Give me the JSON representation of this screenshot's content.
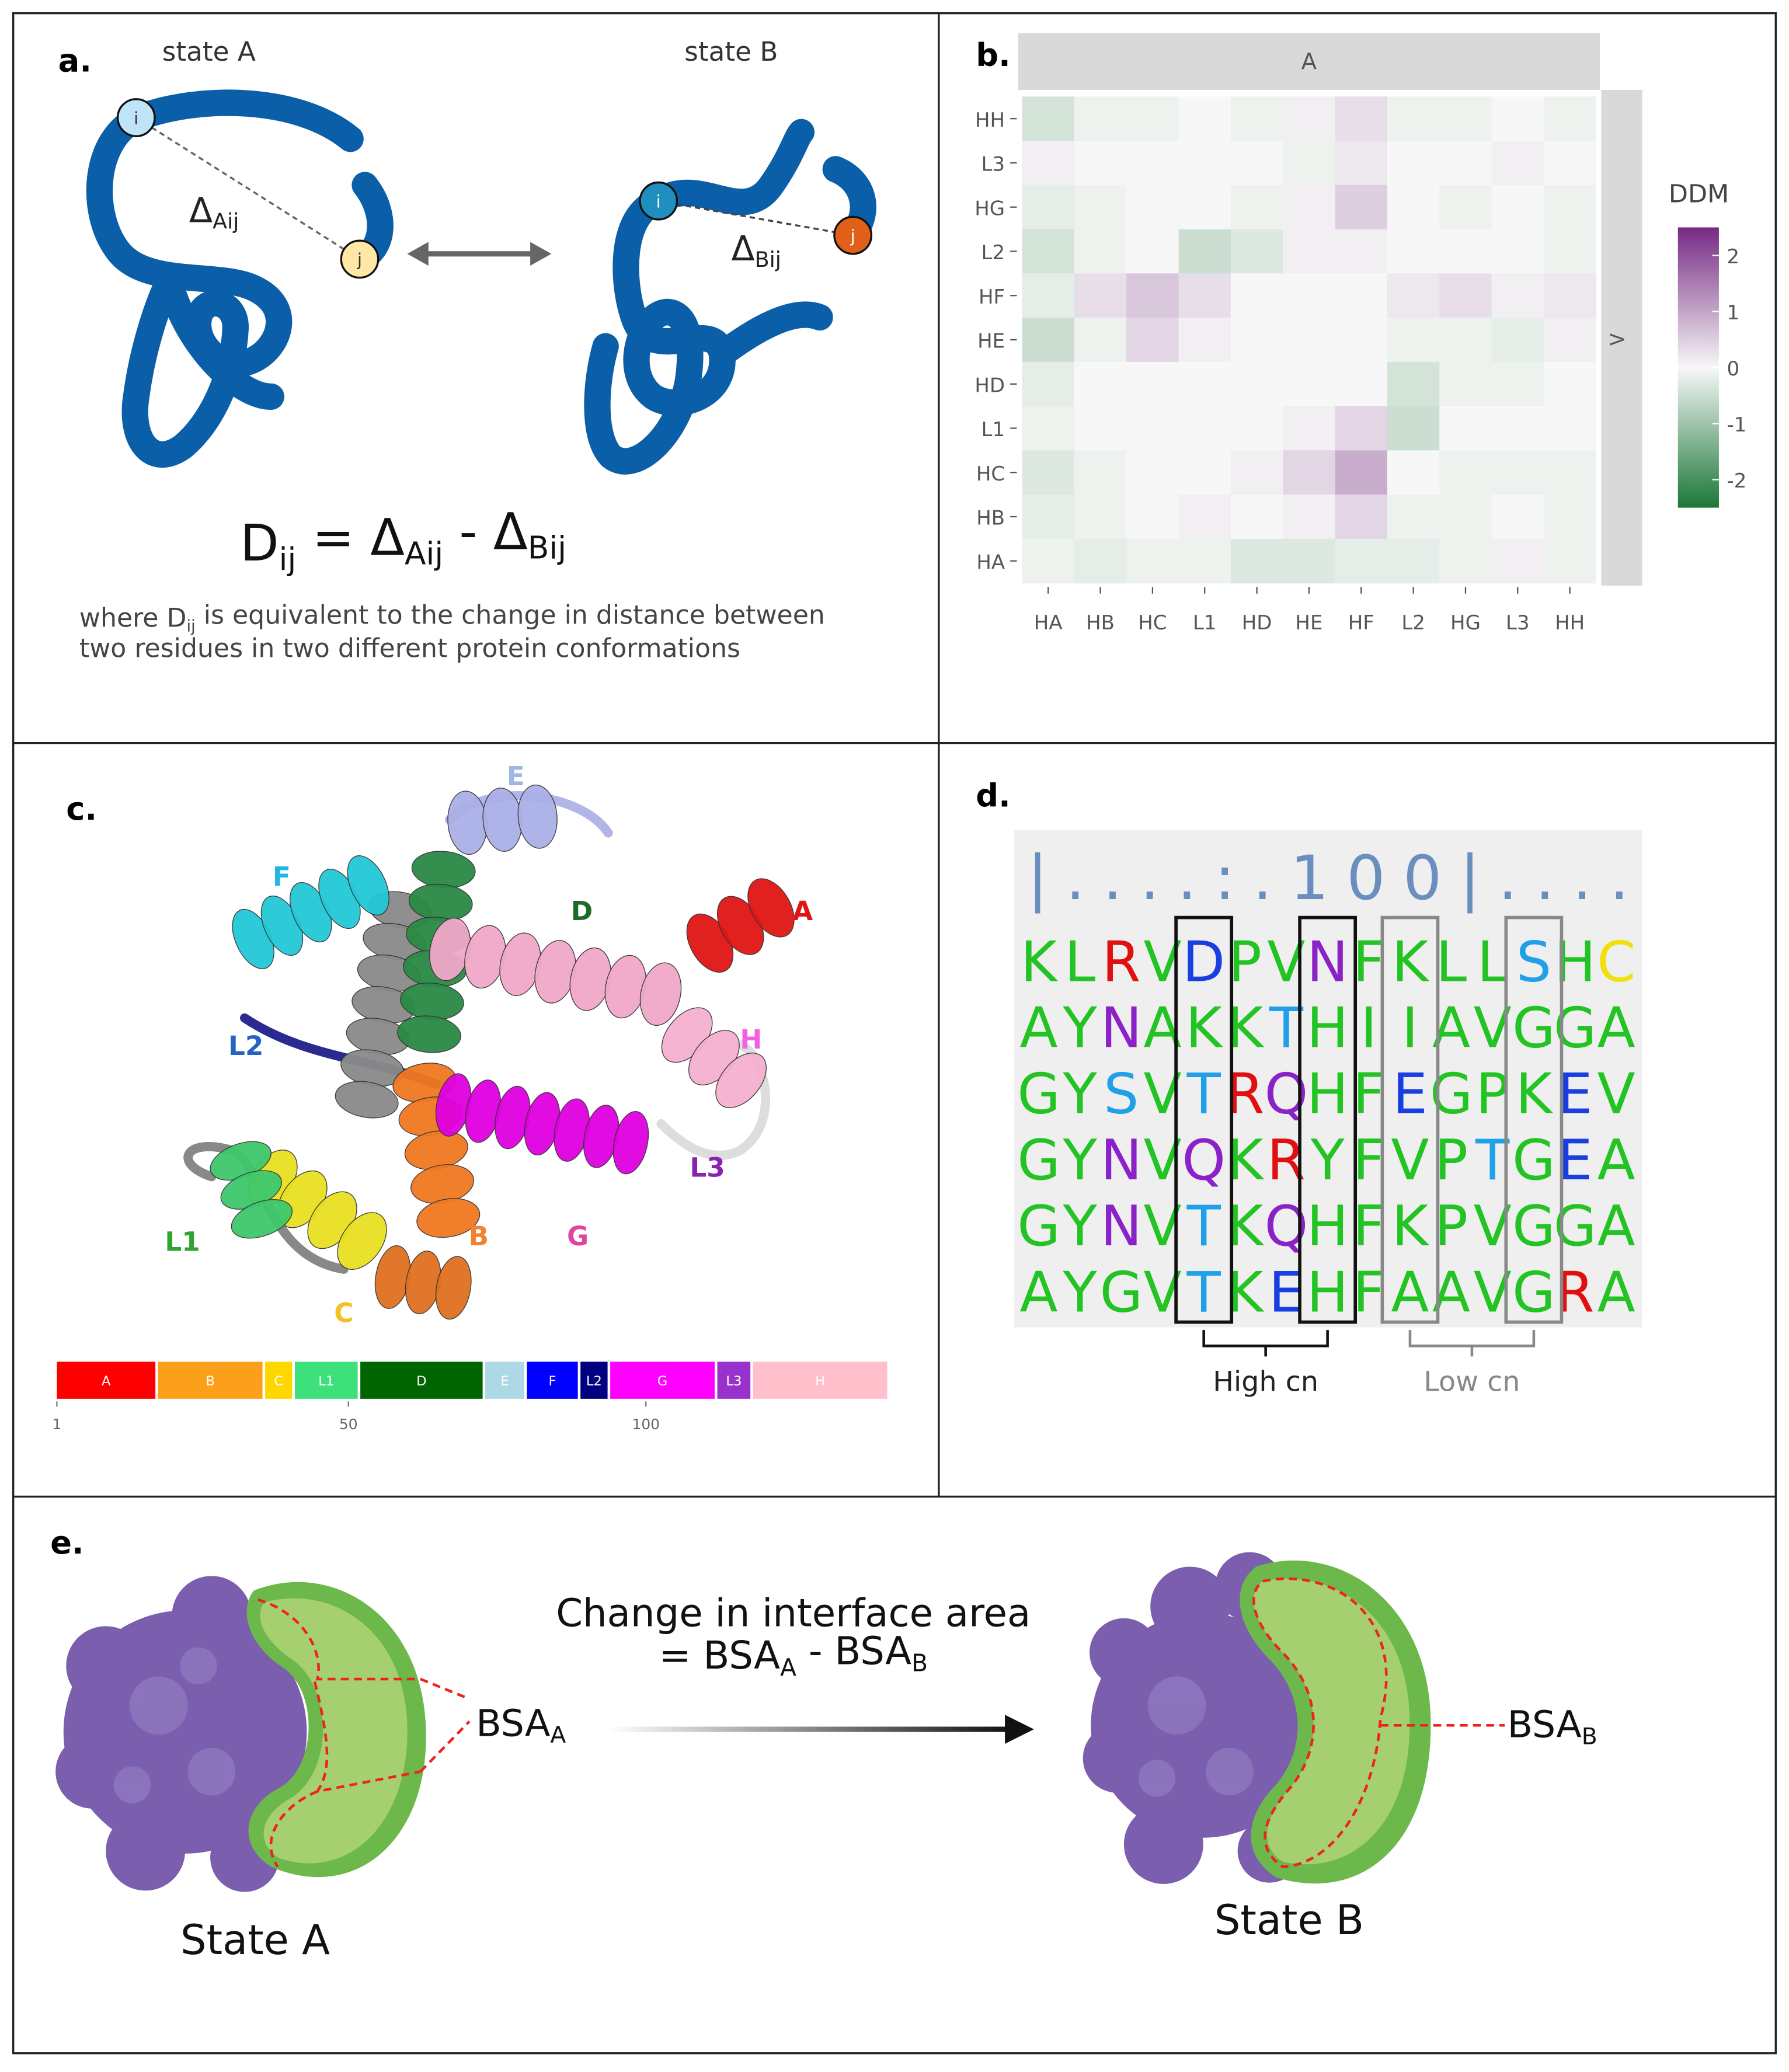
{
  "panel_a": {
    "label": "a.",
    "state_a": "state A",
    "state_b": "state B",
    "i_a": "i",
    "j_a": "j",
    "i_b": "i",
    "j_b": "j",
    "delta_a": [
      {
        "text": "Δ"
      },
      {
        "sub": "Aij"
      }
    ],
    "delta_b": [
      {
        "text": "Δ"
      },
      {
        "sub": "Bij"
      }
    ],
    "formula": [
      {
        "text": "D"
      },
      {
        "sub": "ij"
      },
      {
        "text": " = Δ"
      },
      {
        "sub": "Aij"
      },
      {
        "text": " - Δ"
      },
      {
        "sub": "Bij"
      }
    ],
    "caption": [
      [
        {
          "text": "where D"
        },
        {
          "sub": "ij"
        },
        {
          "text": " is equivalent to the change in distance between"
        }
      ],
      [
        {
          "text": "two residues in two different protein conformations"
        }
      ]
    ]
  },
  "panel_b": {
    "label": "b.",
    "chart_data": {
      "type": "heatmap",
      "facet_top": "A",
      "facet_right": ">",
      "x": [
        "HA",
        "HB",
        "HC",
        "L1",
        "HD",
        "HE",
        "HF",
        "L2",
        "HG",
        "L3",
        "HH"
      ],
      "y": [
        "HH",
        "L3",
        "HG",
        "L2",
        "HF",
        "HE",
        "HD",
        "L1",
        "HC",
        "HB",
        "HA"
      ],
      "values": [
        [
          -0.4,
          -0.1,
          -0.1,
          0,
          -0.1,
          0.1,
          0.3,
          -0.1,
          -0.1,
          0,
          -0.1
        ],
        [
          0.1,
          0,
          0,
          0,
          0,
          -0.1,
          0.2,
          0,
          0,
          0.1,
          0
        ],
        [
          -0.2,
          -0.1,
          0,
          0,
          -0.1,
          0.1,
          0.5,
          0,
          -0.1,
          0,
          -0.1
        ],
        [
          -0.4,
          -0.1,
          0,
          -0.5,
          -0.3,
          0.1,
          0.1,
          0,
          0,
          0,
          -0.1
        ],
        [
          -0.2,
          0.3,
          0.6,
          0.3,
          0,
          0,
          0,
          0.2,
          0.3,
          0.1,
          0.2
        ],
        [
          -0.5,
          -0.1,
          0.4,
          0.1,
          0,
          0,
          0,
          -0.1,
          -0.1,
          -0.2,
          0.1
        ],
        [
          -0.2,
          0,
          0,
          0,
          0,
          0,
          0,
          -0.4,
          -0.1,
          -0.1,
          0
        ],
        [
          -0.1,
          0,
          0,
          0,
          0,
          0.1,
          0.4,
          -0.5,
          0,
          0,
          0
        ],
        [
          -0.3,
          -0.1,
          0,
          0,
          0.1,
          0.4,
          0.9,
          0,
          -0.1,
          -0.1,
          -0.1
        ],
        [
          -0.2,
          -0.1,
          0,
          0.1,
          0,
          0.1,
          0.4,
          -0.1,
          -0.1,
          0,
          -0.1
        ],
        [
          -0.1,
          -0.2,
          -0.1,
          -0.1,
          -0.3,
          -0.3,
          -0.2,
          -0.2,
          -0.1,
          0.1,
          -0.1
        ]
      ],
      "legend_title": "DDM",
      "clim": [
        -2.5,
        2.5
      ],
      "colorbar_ticks": [
        2,
        1,
        0,
        -1,
        -2
      ],
      "colors": [
        "#1b7837",
        "#f7f7f7",
        "#762a83"
      ]
    }
  },
  "panel_c": {
    "label": "c.",
    "structure_labels": [
      {
        "text": "E",
        "color": "#9db8e2"
      },
      {
        "text": "F",
        "color": "#22b5e3"
      },
      {
        "text": "D",
        "color": "#1e6a2a"
      },
      {
        "text": "A",
        "color": "#e01515"
      },
      {
        "text": "L2",
        "color": "#2563c2"
      },
      {
        "text": "H",
        "color": "#f062e2"
      },
      {
        "text": "L3",
        "color": "#8a22b2"
      },
      {
        "text": "L1",
        "color": "#2fa52f"
      },
      {
        "text": "B",
        "color": "#f08232"
      },
      {
        "text": "G",
        "color": "#e043a2"
      },
      {
        "text": "C",
        "color": "#f2c222"
      }
    ],
    "domains": [
      {
        "name": "A",
        "start": 1,
        "end": 17,
        "color": "#ff0000"
      },
      {
        "name": "B",
        "start": 18,
        "end": 35,
        "color": "#fca01c"
      },
      {
        "name": "C",
        "start": 36,
        "end": 40,
        "color": "#ffd700"
      },
      {
        "name": "L1",
        "start": 41,
        "end": 51,
        "color": "#3ee07c"
      },
      {
        "name": "D",
        "start": 52,
        "end": 72,
        "color": "#006400"
      },
      {
        "name": "E",
        "start": 73,
        "end": 79,
        "color": "#add8e6"
      },
      {
        "name": "F",
        "start": 80,
        "end": 88,
        "color": "#0000ff"
      },
      {
        "name": "L2",
        "start": 89,
        "end": 93,
        "color": "#000080"
      },
      {
        "name": "G",
        "start": 94,
        "end": 111,
        "color": "#ff00ff"
      },
      {
        "name": "L3",
        "start": 112,
        "end": 117,
        "color": "#9932cc"
      },
      {
        "name": "H",
        "start": 118,
        "end": 140,
        "color": "#ffc0cb"
      }
    ],
    "xlim": [
      1,
      141
    ],
    "xticks": [
      1,
      50,
      100
    ]
  },
  "panel_d": {
    "label": "d.",
    "header": "|....:.100|....",
    "rows": [
      "KLRVDPVNFKLLSHC",
      "AYNAKKTHIIAVGGA",
      "GYSVTRQHFEGPKEV",
      "GYNVQKRYFVPTGEA",
      "GYNVTKQHFKPVGGA",
      "AYGVTKEHFAAVGRA"
    ],
    "colors": {
      "K": "#22c322",
      "L": "#22c322",
      "V": "#22c322",
      "P": "#22c322",
      "F": "#22c322",
      "H": "#22c322",
      "A": "#22c322",
      "Y": "#22c322",
      "G": "#22c322",
      "I": "#22c322",
      "R": "#e01010",
      "D": "#1a3fe0",
      "E": "#1a3fe0",
      "N": "#8a22c8",
      "Q": "#8a22c8",
      "S": "#1fa0e8",
      "T": "#1fa0e8",
      "C": "#f0e010"
    },
    "brackets": [
      {
        "label": "High cn",
        "columns": [
          4,
          7
        ],
        "color": "#111111"
      },
      {
        "label": "Low cn",
        "columns": [
          9,
          12
        ],
        "color": "#888888"
      }
    ]
  },
  "panel_e": {
    "label": "e.",
    "change_line1": "Change in interface area",
    "change_line2": [
      {
        "text": "= BSA"
      },
      {
        "sub": "A"
      },
      {
        "text": " - BSA"
      },
      {
        "sub": "B"
      }
    ],
    "bsa_a": [
      {
        "text": "BSA"
      },
      {
        "sub": "A"
      }
    ],
    "bsa_b": [
      {
        "text": "BSA"
      },
      {
        "sub": "B"
      }
    ],
    "state_a": "State A",
    "state_b": "State B"
  }
}
